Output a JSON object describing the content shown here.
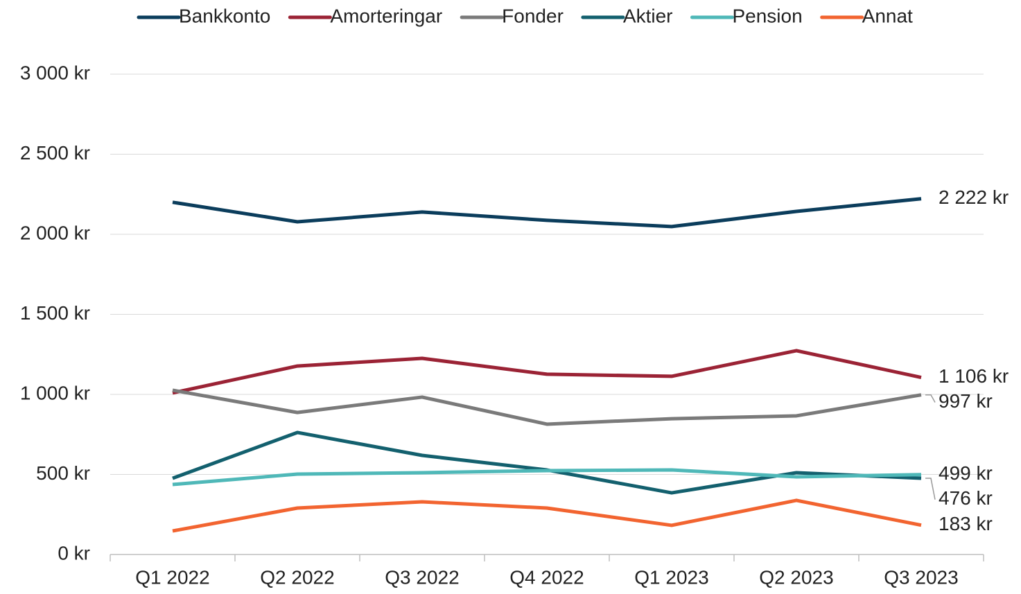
{
  "chart_data": {
    "type": "line",
    "categories": [
      "Q1 2022",
      "Q2 2022",
      "Q3 2022",
      "Q4 2022",
      "Q1 2023",
      "Q2 2023",
      "Q3 2023"
    ],
    "series": [
      {
        "name": "Bankkonto",
        "color": "#0b3d5c",
        "values": [
          2200,
          2078,
          2139,
          2087,
          2048,
          2143,
          2222
        ],
        "value_labels": [
          null,
          null,
          null,
          null,
          null,
          null,
          "2 222 kr"
        ]
      },
      {
        "name": "Amorteringar",
        "color": "#9b2335",
        "values": [
          1009,
          1177,
          1225,
          1126,
          1113,
          1273,
          1106
        ],
        "value_labels": [
          null,
          null,
          null,
          null,
          null,
          null,
          "1 106 kr"
        ]
      },
      {
        "name": "Fonder",
        "color": "#7a7a7a",
        "values": [
          1026,
          887,
          983,
          814,
          848,
          866,
          997
        ],
        "value_labels": [
          null,
          null,
          null,
          null,
          null,
          null,
          "997 kr"
        ]
      },
      {
        "name": "Aktier",
        "color": "#13606e",
        "values": [
          476,
          762,
          619,
          528,
          385,
          511,
          476
        ],
        "value_labels": [
          null,
          null,
          null,
          null,
          null,
          null,
          "476 kr"
        ]
      },
      {
        "name": "Pension",
        "color": "#4fb8b8",
        "values": [
          437,
          502,
          511,
          524,
          528,
          485,
          499
        ],
        "value_labels": [
          null,
          null,
          null,
          null,
          null,
          null,
          "499 kr"
        ]
      },
      {
        "name": "Annat",
        "color": "#f26430",
        "values": [
          147,
          290,
          329,
          290,
          182,
          338,
          183
        ],
        "value_labels": [
          null,
          null,
          null,
          null,
          null,
          null,
          "183 kr"
        ]
      }
    ],
    "ylim": [
      0,
      3000
    ],
    "yticks": [
      {
        "value": 0,
        "label": "0 kr"
      },
      {
        "value": 500,
        "label": "500 kr"
      },
      {
        "value": 1000,
        "label": "1 000 kr"
      },
      {
        "value": 1500,
        "label": "1 500 kr"
      },
      {
        "value": 2000,
        "label": "2 000 kr"
      },
      {
        "value": 2500,
        "label": "2 500 kr"
      },
      {
        "value": 3000,
        "label": "3 000 kr"
      }
    ],
    "grid": true,
    "legend": "top"
  }
}
